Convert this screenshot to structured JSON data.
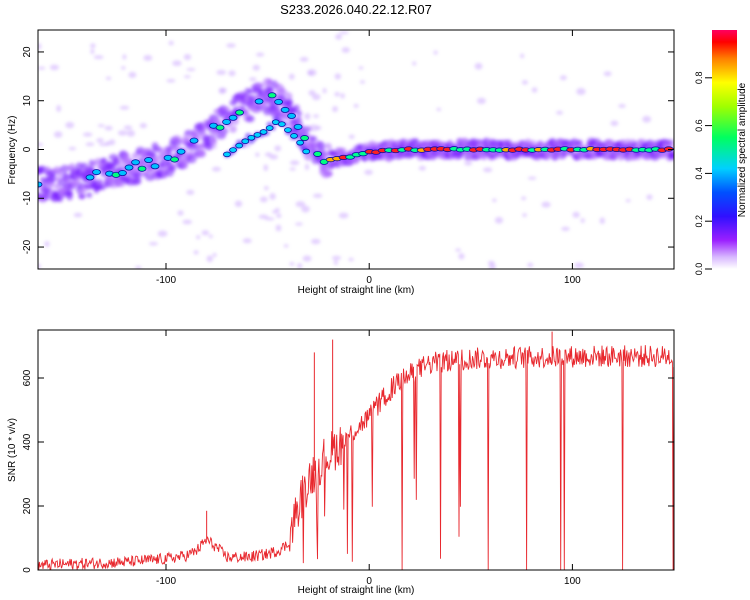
{
  "title": "S233.2026.040.22.12.R07",
  "colors": {
    "series_line": "#e8282e",
    "frame": "#000000",
    "spectral_ridge": "#00c8ff",
    "spectral_halo": "#9b5cff",
    "spectral_peak": "#ff1010"
  },
  "chart_data": [
    {
      "type": "heatmap",
      "title": "S233.2026.040.22.12.R07",
      "xlabel": "Height of straight line (km)",
      "ylabel": "Frequency (Hz)",
      "xlim": [
        -163,
        150
      ],
      "ylim": [
        -24.5,
        24.5
      ],
      "xticks": [
        -100,
        0,
        100
      ],
      "yticks": [
        -20,
        -10,
        0,
        10,
        20
      ],
      "colorbar": {
        "label": "Normalized spectral amplitude",
        "range": [
          0,
          1
        ],
        "ticks": [
          "0.0",
          "0.2",
          "0.4",
          "0.6",
          "0.8"
        ],
        "colormap": "rainbow (magenta-blue-cyan-green-yellow-red)"
      },
      "ridge": {
        "x": [
          -160,
          -150,
          -140,
          -130,
          -120,
          -110,
          -100,
          -90,
          -80,
          -70,
          -60,
          -50,
          -45,
          -40,
          -35,
          -30,
          -25,
          -20,
          -10,
          0,
          20,
          50,
          100,
          150
        ],
        "y": [
          -7,
          -7,
          -6.5,
          -5,
          -4,
          -3,
          -2,
          0,
          3,
          6,
          9,
          11,
          10,
          8,
          5,
          1,
          -2,
          -2,
          -1.5,
          -0.5,
          0,
          0,
          0,
          0
        ]
      },
      "ridge2": {
        "x": [
          -70,
          -60,
          -50,
          -45,
          -40,
          -35,
          -30
        ],
        "y": [
          -1,
          2,
          4,
          6,
          4,
          2,
          -1
        ]
      }
    },
    {
      "type": "line",
      "xlabel": "Height of straight line (km)",
      "ylabel": "SNR (10 * v/v)",
      "xlim": [
        -163,
        150
      ],
      "ylim": [
        0,
        750
      ],
      "xticks": [
        -100,
        0,
        100
      ],
      "yticks": [
        0,
        200,
        400,
        600
      ],
      "series": [
        {
          "x": [
            -163,
            -150,
            -140,
            -130,
            -120,
            -110,
            -100,
            -90,
            -85,
            -80,
            -75,
            -70,
            -60,
            -50,
            -45,
            -40,
            -38,
            -35,
            -32,
            -30,
            -25,
            -20,
            -15,
            -10,
            -5,
            0,
            5,
            10,
            15,
            20,
            25,
            30,
            40,
            50,
            60,
            70,
            80,
            90,
            100,
            110,
            120,
            130,
            140,
            150
          ],
          "values": [
            15,
            18,
            20,
            22,
            25,
            30,
            35,
            45,
            60,
            95,
            70,
            40,
            40,
            50,
            60,
            80,
            130,
            200,
            250,
            280,
            330,
            360,
            390,
            420,
            450,
            480,
            520,
            560,
            590,
            610,
            630,
            645,
            655,
            660,
            662,
            664,
            665,
            666,
            667,
            668,
            668,
            668,
            668,
            668
          ]
        }
      ],
      "spikes": [
        {
          "x": -80,
          "y": 185
        },
        {
          "x": -27,
          "y": 680
        },
        {
          "x": -18,
          "y": 720
        },
        {
          "x": 90,
          "y": 745
        }
      ]
    }
  ]
}
